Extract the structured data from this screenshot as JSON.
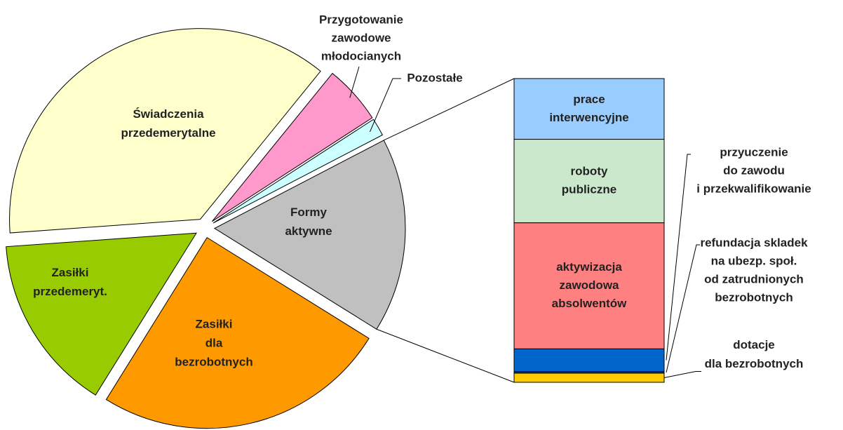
{
  "chart_data": {
    "type": "pie-of-bar",
    "pie": {
      "categories": [
        [
          "Pozostałe"
        ],
        [
          "Przygotowanie",
          "zawodowe",
          "młodocianych"
        ],
        [
          "Świadczenia",
          "przedemerytalne"
        ],
        [
          "Zasiłki",
          "przedemeryt."
        ],
        [
          "Zasiłki",
          "dla",
          "bezrobotnych"
        ],
        [
          "Formy",
          "aktywne"
        ]
      ],
      "values": [
        1.5,
        5,
        37,
        15,
        25,
        16.5
      ],
      "colors": [
        "#ccffff",
        "#ff99cc",
        "#ffffcc",
        "#99cc00",
        "#ff9900",
        "#c0c0c0"
      ]
    },
    "bar": {
      "categories": [
        [
          "prace",
          "interwencyjne"
        ],
        [
          "roboty",
          "publiczne"
        ],
        [
          "aktywizacja",
          "zawodowa",
          "absolwentów"
        ],
        [
          "przyuczenie",
          "do zawodu",
          "i przekwalifikowanie"
        ],
        [
          "refundacja skladek",
          "na ubezp. społ.",
          "od zatrudnionych",
          "bezrobotnych"
        ],
        [
          "dotacje",
          "dla bezrobotnych"
        ]
      ],
      "values": [
        20,
        27.5,
        41.5,
        7.5,
        0.5,
        3
      ],
      "colors": [
        "#99ccff",
        "#cce8cc",
        "#ff8080",
        "#0066cc",
        "#003399",
        "#ffcc00"
      ]
    }
  }
}
